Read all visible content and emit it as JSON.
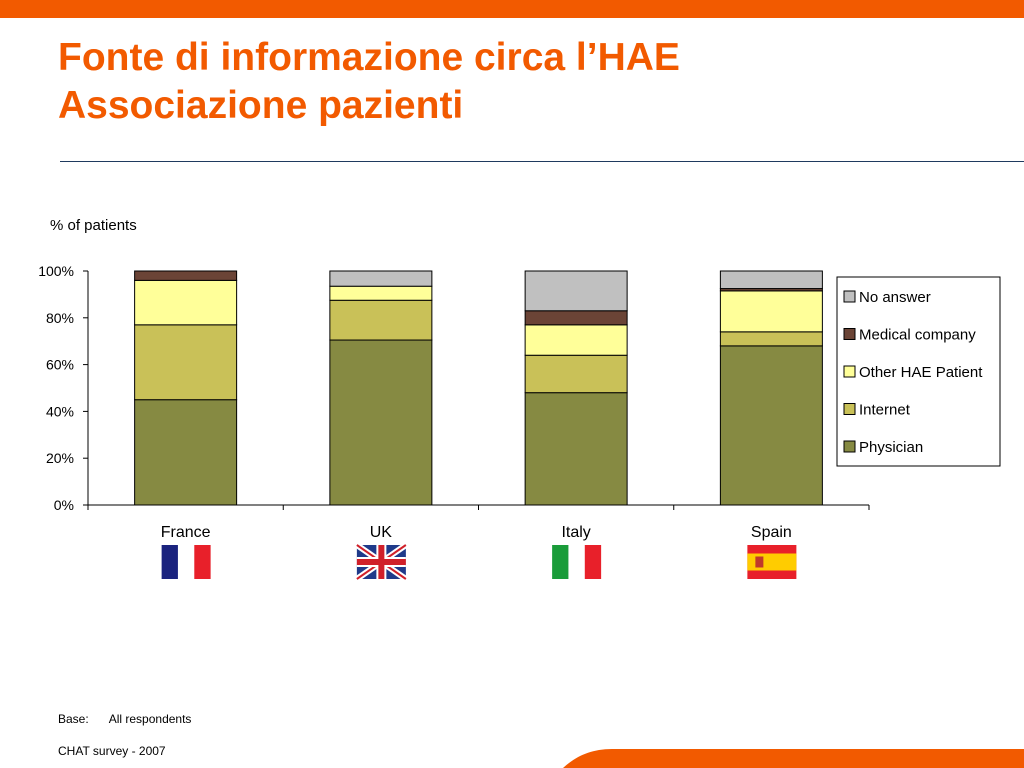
{
  "slide": {
    "title_line1": "Fonte di informazione circa l’HAE",
    "title_line2": "Associazione pazienti",
    "accent_color": "#f25a00",
    "rule_color": "#1f3a5f"
  },
  "chart_data": {
    "type": "bar",
    "stacked": true,
    "percent_stacked": true,
    "ylabel": "% of patients",
    "ylim": [
      0,
      100
    ],
    "yticks": [
      0,
      20,
      40,
      60,
      80,
      100
    ],
    "ytick_labels": [
      "0%",
      "20%",
      "40%",
      "60%",
      "80%",
      "100%"
    ],
    "categories": [
      "France",
      "UK",
      "Italy",
      "Spain"
    ],
    "category_flags": [
      "flag-france-icon",
      "flag-uk-icon",
      "flag-italy-icon",
      "flag-spain-icon"
    ],
    "legend_position": "right",
    "grid": false,
    "series": [
      {
        "name": "Physician",
        "color": "#868a42",
        "values": [
          45,
          70.5,
          48,
          68
        ]
      },
      {
        "name": "Internet",
        "color": "#c9c158",
        "values": [
          32,
          17,
          16,
          6
        ]
      },
      {
        "name": "Other HAE Patient",
        "color": "#ffff99",
        "values": [
          19,
          6,
          13,
          17.5
        ]
      },
      {
        "name": "Medical company",
        "color": "#6b4436",
        "values": [
          4,
          0,
          6,
          1
        ]
      },
      {
        "name": "No answer",
        "color": "#c0c0c0",
        "values": [
          0,
          6.5,
          17,
          7.5
        ]
      }
    ]
  },
  "notes": {
    "base_label": "Base:",
    "base_value": "All respondents",
    "source": "CHAT survey  -  2007"
  }
}
